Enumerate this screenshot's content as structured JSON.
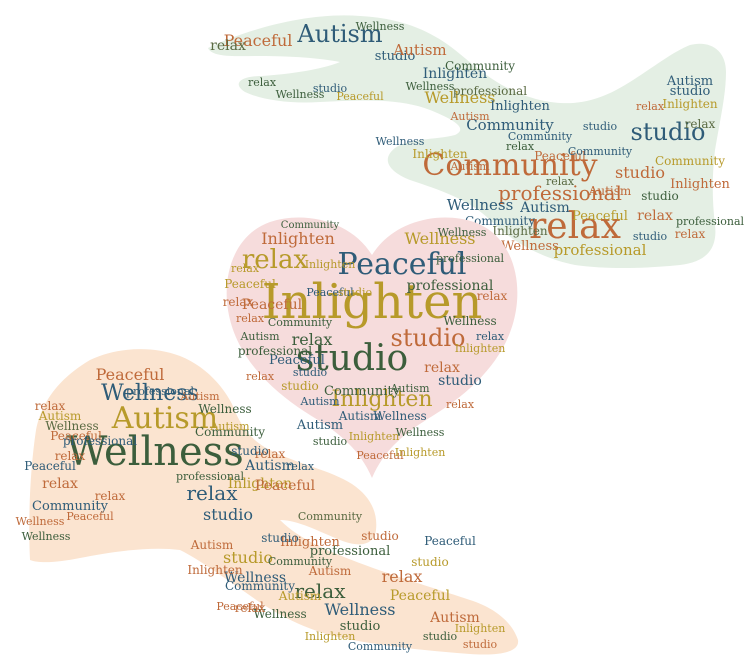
{
  "vocabulary": [
    "Wellness",
    "Autism",
    "relax",
    "Peaceful",
    "Community",
    "studio",
    "Inlighten",
    "professional"
  ],
  "colors": {
    "background": "#ffffff",
    "top_hand_fill": "#e4efe4",
    "heart_fill": "#f6dcdc",
    "bottom_hand_fill": "#fbe4d0",
    "word_palette": [
      "#3c5e3c",
      "#bf6a3a",
      "#2f5c78",
      "#b79a2a",
      "#5a6a42"
    ]
  },
  "top_hand": {
    "words": [
      {
        "text": "Community"
      },
      {
        "text": "relax"
      },
      {
        "text": "professional"
      },
      {
        "text": "studio"
      },
      {
        "text": "Autism"
      },
      {
        "text": "Peaceful"
      },
      {
        "text": "Wellness"
      },
      {
        "text": "Inlighten"
      },
      {
        "text": "studio"
      },
      {
        "text": "relax"
      },
      {
        "text": "Autism"
      },
      {
        "text": "Community"
      },
      {
        "text": "Inlighten"
      },
      {
        "text": "Wellness"
      },
      {
        "text": "professional"
      },
      {
        "text": "Autism"
      },
      {
        "text": "studio"
      },
      {
        "text": "Inlighten"
      },
      {
        "text": "relax"
      },
      {
        "text": "Community"
      },
      {
        "text": "relax"
      },
      {
        "text": "Peaceful"
      },
      {
        "text": "Autism"
      },
      {
        "text": "studio"
      },
      {
        "text": "Wellness"
      },
      {
        "text": "Community"
      },
      {
        "text": "relax"
      },
      {
        "text": "studio"
      },
      {
        "text": "Wellness"
      },
      {
        "text": "Inlighten"
      },
      {
        "text": "Autism"
      },
      {
        "text": "professional"
      },
      {
        "text": "Peaceful"
      },
      {
        "text": "studio"
      },
      {
        "text": "relax"
      },
      {
        "text": "Wellness"
      },
      {
        "text": "Inlighten"
      },
      {
        "text": "Autism"
      },
      {
        "text": "relax"
      },
      {
        "text": "Community"
      },
      {
        "text": "studio"
      },
      {
        "text": "Peaceful"
      },
      {
        "text": "Wellness"
      },
      {
        "text": "relax"
      },
      {
        "text": "Autism"
      },
      {
        "text": "Community"
      },
      {
        "text": "studio"
      },
      {
        "text": "Inlighten"
      },
      {
        "text": "relax"
      },
      {
        "text": "Wellness"
      },
      {
        "text": "Community"
      },
      {
        "text": "professional"
      }
    ]
  },
  "heart": {
    "words": [
      {
        "text": "Inlighten"
      },
      {
        "text": "studio"
      },
      {
        "text": "Peaceful"
      },
      {
        "text": "relax"
      },
      {
        "text": "studio"
      },
      {
        "text": "Inlighten"
      },
      {
        "text": "Peaceful"
      },
      {
        "text": "relax"
      },
      {
        "text": "Wellness"
      },
      {
        "text": "Inlighten"
      },
      {
        "text": "professional"
      },
      {
        "text": "Peaceful"
      },
      {
        "text": "relax"
      },
      {
        "text": "Community"
      },
      {
        "text": "studio"
      },
      {
        "text": "professional"
      },
      {
        "text": "relax"
      },
      {
        "text": "Autism"
      },
      {
        "text": "Peaceful"
      },
      {
        "text": "Wellness"
      },
      {
        "text": "Inlighten"
      },
      {
        "text": "studio"
      },
      {
        "text": "relax"
      },
      {
        "text": "Wellness"
      },
      {
        "text": "relax"
      },
      {
        "text": "studio"
      },
      {
        "text": "Autism"
      },
      {
        "text": "professional"
      },
      {
        "text": "Autism"
      },
      {
        "text": "relax"
      },
      {
        "text": "Inlighten"
      },
      {
        "text": "Community"
      },
      {
        "text": "relax"
      },
      {
        "text": "Peaceful"
      },
      {
        "text": "Autism"
      },
      {
        "text": "relax"
      },
      {
        "text": "Wellness"
      },
      {
        "text": "studio"
      },
      {
        "text": "Inlighten"
      },
      {
        "text": "Community"
      },
      {
        "text": "Peaceful"
      },
      {
        "text": "relax"
      },
      {
        "text": "Autism"
      },
      {
        "text": "studio"
      },
      {
        "text": "Inlighten"
      },
      {
        "text": "Wellness"
      }
    ]
  },
  "bottom_hand": {
    "words": [
      {
        "text": "Wellness"
      },
      {
        "text": "Autism"
      },
      {
        "text": "Wellness"
      },
      {
        "text": "relax"
      },
      {
        "text": "Peaceful"
      },
      {
        "text": "studio"
      },
      {
        "text": "relax"
      },
      {
        "text": "Inlighten"
      },
      {
        "text": "Community"
      },
      {
        "text": "Autism"
      },
      {
        "text": "professional"
      },
      {
        "text": "relax"
      },
      {
        "text": "studio"
      },
      {
        "text": "Peaceful"
      },
      {
        "text": "Wellness"
      },
      {
        "text": "Inlighten"
      },
      {
        "text": "Peaceful"
      },
      {
        "text": "Autism"
      },
      {
        "text": "Community"
      },
      {
        "text": "studio"
      },
      {
        "text": "Wellness"
      },
      {
        "text": "relax"
      },
      {
        "text": "relax"
      },
      {
        "text": "Autism"
      },
      {
        "text": "Wellness"
      },
      {
        "text": "studio"
      },
      {
        "text": "Peaceful"
      },
      {
        "text": "professional"
      },
      {
        "text": "Autism"
      },
      {
        "text": "Wellness"
      },
      {
        "text": "relax"
      },
      {
        "text": "Peaceful"
      },
      {
        "text": "studio"
      },
      {
        "text": "Inlighten"
      },
      {
        "text": "Community"
      },
      {
        "text": "Autism"
      },
      {
        "text": "relax"
      },
      {
        "text": "Peaceful"
      },
      {
        "text": "Wellness"
      },
      {
        "text": "relax"
      },
      {
        "text": "studio"
      },
      {
        "text": "Inlighten"
      },
      {
        "text": "Autism"
      },
      {
        "text": "professional"
      },
      {
        "text": "Community"
      },
      {
        "text": "Wellness"
      },
      {
        "text": "relax"
      },
      {
        "text": "Peaceful"
      },
      {
        "text": "Autism"
      },
      {
        "text": "studio"
      },
      {
        "text": "Community"
      },
      {
        "text": "Inlighten"
      },
      {
        "text": "Peaceful"
      },
      {
        "text": "studio"
      },
      {
        "text": "relax"
      },
      {
        "text": "Wellness"
      },
      {
        "text": "professional"
      },
      {
        "text": "Autism"
      },
      {
        "text": "Community"
      },
      {
        "text": "studio"
      }
    ]
  }
}
